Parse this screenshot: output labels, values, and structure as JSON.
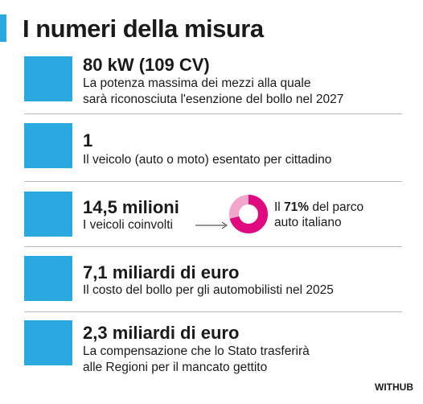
{
  "header": {
    "title": "I numeri della misura"
  },
  "items": [
    {
      "heading": "80 kW (109 CV)",
      "lines": [
        "La potenza massima dei mezzi alla quale",
        "sarà riconosciuta l'esenzione del bollo nel 2027"
      ]
    },
    {
      "heading": "1",
      "lines": [
        "Il veicolo (auto o moto) esentato per cittadino"
      ]
    },
    {
      "heading": "14,5 milioni",
      "lines": [
        "I veicoli coinvolti"
      ]
    },
    {
      "heading": "7,1 miliardi di euro",
      "lines": [
        "Il costo del bollo per gli automobilisti nel 2025"
      ]
    },
    {
      "heading": "2,3 miliardi di euro",
      "lines": [
        "La compensazione che lo Stato trasferirà",
        "alle Regioni per il mancato gettito"
      ]
    }
  ],
  "donut": {
    "value": 71,
    "value_label": "71%",
    "prefix": "Il",
    "suffix": "del parco",
    "line2": "auto italiano"
  },
  "footer": {
    "brand": "WITHUB"
  }
}
